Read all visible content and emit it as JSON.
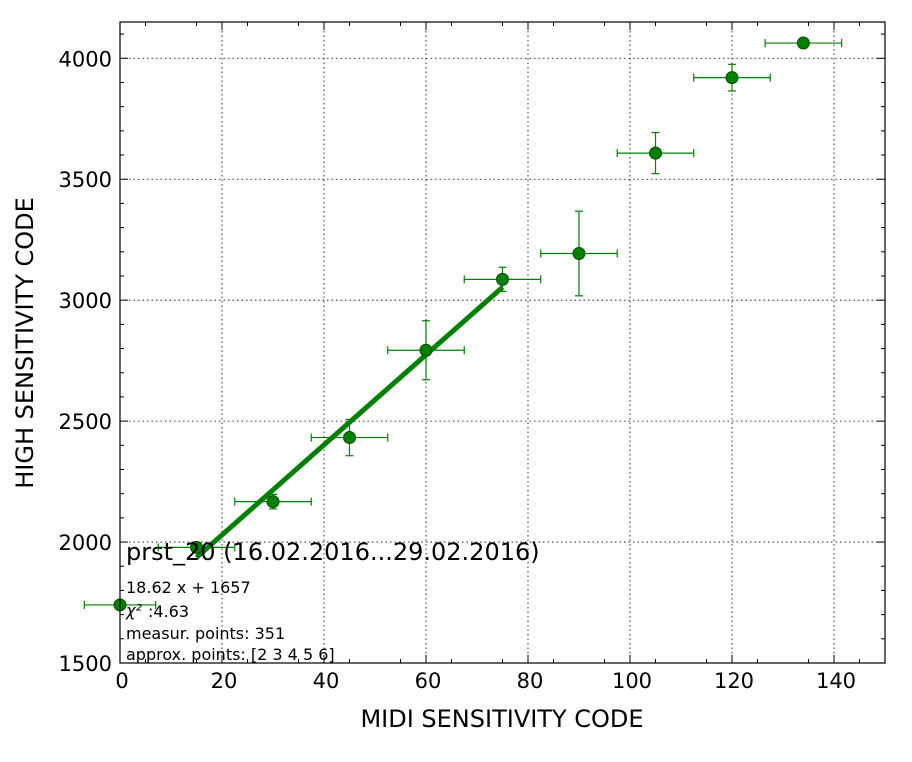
{
  "colors": {
    "series": "#008000",
    "marker_edge": "#004d00",
    "axis": "#000000",
    "grid": "#000000",
    "background": "#ffffff"
  },
  "chart_data": {
    "type": "scatter",
    "title": "",
    "xlabel": "MIDI SENSITIVITY CODE",
    "ylabel": "HIGH SENSITIVITY CODE",
    "xlim": [
      0,
      150
    ],
    "ylim": [
      1500,
      4150
    ],
    "x_ticks": [
      0,
      20,
      40,
      60,
      80,
      100,
      120,
      140
    ],
    "y_ticks": [
      1500,
      2000,
      2500,
      3000,
      3500,
      4000
    ],
    "x_tick_labels": [
      "0",
      "20",
      "40",
      "60",
      "80",
      "100",
      "120",
      "140"
    ],
    "y_tick_labels": [
      "1500",
      "2000",
      "2500",
      "3000",
      "3500",
      "4000"
    ],
    "grid": true,
    "legend": "none",
    "series": [
      {
        "points": [
          {
            "x": 0,
            "y": 1740,
            "xerr": 7,
            "yerr": 0
          },
          {
            "x": 15,
            "y": 1978,
            "xerr": 7.5,
            "yerr": 20
          },
          {
            "x": 30,
            "y": 2167,
            "xerr": 7.5,
            "yerr": 30
          },
          {
            "x": 45,
            "y": 2432,
            "xerr": 7.5,
            "yerr": 75
          },
          {
            "x": 60,
            "y": 2793,
            "xerr": 7.5,
            "yerr": 122
          },
          {
            "x": 75,
            "y": 3086,
            "xerr": 7.5,
            "yerr": 50
          },
          {
            "x": 90,
            "y": 3193,
            "xerr": 7.5,
            "yerr": 175
          },
          {
            "x": 105,
            "y": 3608,
            "xerr": 7.5,
            "yerr": 85
          },
          {
            "x": 120,
            "y": 3920,
            "xerr": 7.5,
            "yerr": 55
          },
          {
            "x": 134,
            "y": 4063,
            "xerr": 7.5,
            "yerr": 10
          }
        ]
      }
    ],
    "fit_line": {
      "slope": 18.62,
      "intercept": 1657,
      "x_start": 15,
      "x_end": 75
    },
    "annotations": {
      "title": "prst_20 (16.02.2016...29.02.2016)",
      "equation": "18.62 x + 1657",
      "chi_label": "χ²",
      "chi_value": ":4.63",
      "measur_points": "measur. points: 351",
      "approx_points": "approx. points: [2 3 4 5 6]"
    }
  }
}
